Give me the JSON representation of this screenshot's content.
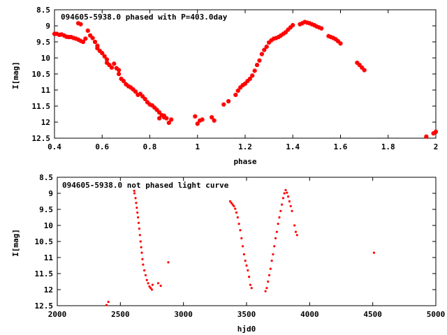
{
  "chart_data": [
    {
      "type": "scatter",
      "title": "094605-5938.0 phased with P=403.0day",
      "xlabel": "phase",
      "ylabel": "I[mag]",
      "xlim": [
        0.4,
        2.0
      ],
      "ylim": [
        8.5,
        12.5
      ],
      "y_inverted": true,
      "xticks": [
        "0.4",
        "0.6",
        "0.8",
        "1",
        "1.2",
        "1.4",
        "1.6",
        "1.8",
        "2"
      ],
      "yticks": [
        "8.5",
        "9",
        "9.5",
        "10",
        "10.5",
        "11",
        "11.5",
        "12",
        "12.5"
      ],
      "marker_color": "#ff0000",
      "series": [
        {
          "points": [
            [
              0.4,
              9.25
            ],
            [
              0.41,
              9.25
            ],
            [
              0.42,
              9.28
            ],
            [
              0.43,
              9.27
            ],
            [
              0.44,
              9.3
            ],
            [
              0.45,
              9.34
            ],
            [
              0.46,
              9.35
            ],
            [
              0.47,
              9.35
            ],
            [
              0.48,
              9.38
            ],
            [
              0.49,
              9.4
            ],
            [
              0.5,
              9.43
            ],
            [
              0.51,
              9.47
            ],
            [
              0.52,
              9.5
            ],
            [
              0.53,
              9.4
            ],
            [
              0.5,
              8.92
            ],
            [
              0.51,
              8.95
            ],
            [
              0.54,
              9.15
            ],
            [
              0.55,
              9.3
            ],
            [
              0.56,
              9.38
            ],
            [
              0.57,
              9.5
            ],
            [
              0.58,
              9.62
            ],
            [
              0.58,
              9.7
            ],
            [
              0.59,
              9.78
            ],
            [
              0.6,
              9.85
            ],
            [
              0.61,
              9.95
            ],
            [
              0.62,
              10.05
            ],
            [
              0.62,
              10.15
            ],
            [
              0.63,
              10.22
            ],
            [
              0.64,
              10.3
            ],
            [
              0.65,
              10.18
            ],
            [
              0.66,
              10.32
            ],
            [
              0.67,
              10.38
            ],
            [
              0.67,
              10.5
            ],
            [
              0.68,
              10.65
            ],
            [
              0.69,
              10.72
            ],
            [
              0.7,
              10.82
            ],
            [
              0.71,
              10.88
            ],
            [
              0.72,
              10.92
            ],
            [
              0.73,
              10.98
            ],
            [
              0.74,
              11.05
            ],
            [
              0.75,
              11.15
            ],
            [
              0.76,
              11.12
            ],
            [
              0.77,
              11.2
            ],
            [
              0.78,
              11.28
            ],
            [
              0.79,
              11.38
            ],
            [
              0.8,
              11.45
            ],
            [
              0.81,
              11.48
            ],
            [
              0.82,
              11.55
            ],
            [
              0.83,
              11.62
            ],
            [
              0.84,
              11.7
            ],
            [
              0.85,
              11.78
            ],
            [
              0.86,
              11.85
            ],
            [
              0.87,
              11.88
            ],
            [
              0.88,
              12.02
            ],
            [
              0.89,
              11.92
            ],
            [
              0.84,
              11.88
            ],
            [
              0.86,
              11.8
            ],
            [
              0.99,
              11.82
            ],
            [
              1.0,
              12.05
            ],
            [
              1.01,
              11.95
            ],
            [
              1.02,
              11.92
            ],
            [
              1.06,
              11.85
            ],
            [
              1.07,
              11.95
            ],
            [
              1.11,
              11.45
            ],
            [
              1.13,
              11.35
            ],
            [
              1.16,
              11.15
            ],
            [
              1.17,
              11.02
            ],
            [
              1.18,
              10.92
            ],
            [
              1.19,
              10.85
            ],
            [
              1.2,
              10.8
            ],
            [
              1.21,
              10.72
            ],
            [
              1.22,
              10.65
            ],
            [
              1.23,
              10.55
            ],
            [
              1.24,
              10.4
            ],
            [
              1.25,
              10.22
            ],
            [
              1.26,
              10.08
            ],
            [
              1.27,
              9.88
            ],
            [
              1.28,
              9.75
            ],
            [
              1.29,
              9.65
            ],
            [
              1.3,
              9.52
            ],
            [
              1.31,
              9.45
            ],
            [
              1.32,
              9.4
            ],
            [
              1.33,
              9.38
            ],
            [
              1.34,
              9.35
            ],
            [
              1.35,
              9.3
            ],
            [
              1.36,
              9.25
            ],
            [
              1.37,
              9.2
            ],
            [
              1.38,
              9.12
            ],
            [
              1.39,
              9.05
            ],
            [
              1.4,
              8.98
            ],
            [
              1.43,
              8.95
            ],
            [
              1.44,
              8.92
            ],
            [
              1.45,
              8.88
            ],
            [
              1.46,
              8.9
            ],
            [
              1.47,
              8.92
            ],
            [
              1.48,
              8.95
            ],
            [
              1.49,
              8.98
            ],
            [
              1.5,
              9.02
            ],
            [
              1.51,
              9.05
            ],
            [
              1.52,
              9.08
            ],
            [
              1.55,
              9.32
            ],
            [
              1.56,
              9.35
            ],
            [
              1.57,
              9.38
            ],
            [
              1.58,
              9.42
            ],
            [
              1.59,
              9.48
            ],
            [
              1.6,
              9.55
            ],
            [
              1.67,
              10.15
            ],
            [
              1.68,
              10.22
            ],
            [
              1.69,
              10.3
            ],
            [
              1.7,
              10.38
            ],
            [
              1.96,
              12.45
            ],
            [
              1.99,
              12.35
            ],
            [
              2.0,
              12.3
            ]
          ]
        }
      ]
    },
    {
      "type": "scatter",
      "title": "094605-5938.0 not phased light curve",
      "xlabel": "hjd0",
      "ylabel": "I[mag]",
      "xlim": [
        2000,
        5000
      ],
      "ylim": [
        8.5,
        12.5
      ],
      "y_inverted": true,
      "xticks": [
        "2000",
        "2500",
        "3000",
        "3500",
        "4000",
        "4500",
        "5000"
      ],
      "yticks": [
        "8.5",
        "9",
        "9.5",
        "10",
        "10.5",
        "11",
        "11.5",
        "12",
        "12.5"
      ],
      "marker_color": "#ff0000",
      "series": [
        {
          "points": [
            [
              2390,
              12.48
            ],
            [
              2405,
              12.38
            ],
            [
              2610,
              8.92
            ],
            [
              2612,
              9.0
            ],
            [
              2620,
              9.15
            ],
            [
              2625,
              9.3
            ],
            [
              2630,
              9.45
            ],
            [
              2635,
              9.6
            ],
            [
              2640,
              9.75
            ],
            [
              2645,
              9.92
            ],
            [
              2650,
              10.1
            ],
            [
              2655,
              10.3
            ],
            [
              2660,
              10.5
            ],
            [
              2665,
              10.68
            ],
            [
              2670,
              10.85
            ],
            [
              2675,
              11.05
            ],
            [
              2680,
              11.22
            ],
            [
              2690,
              11.4
            ],
            [
              2700,
              11.55
            ],
            [
              2710,
              11.7
            ],
            [
              2720,
              11.8
            ],
            [
              2730,
              11.9
            ],
            [
              2740,
              11.95
            ],
            [
              2755,
              11.85
            ],
            [
              2750,
              12.0
            ],
            [
              2800,
              11.8
            ],
            [
              2820,
              11.88
            ],
            [
              2880,
              11.15
            ],
            [
              3370,
              9.25
            ],
            [
              3380,
              9.3
            ],
            [
              3390,
              9.35
            ],
            [
              3400,
              9.4
            ],
            [
              3410,
              9.48
            ],
            [
              3420,
              9.6
            ],
            [
              3430,
              9.75
            ],
            [
              3440,
              9.95
            ],
            [
              3450,
              10.15
            ],
            [
              3460,
              10.4
            ],
            [
              3470,
              10.65
            ],
            [
              3480,
              10.9
            ],
            [
              3490,
              11.1
            ],
            [
              3500,
              11.25
            ],
            [
              3510,
              11.4
            ],
            [
              3520,
              11.6
            ],
            [
              3530,
              11.85
            ],
            [
              3540,
              11.95
            ],
            [
              3650,
              12.05
            ],
            [
              3660,
              11.95
            ],
            [
              3670,
              11.75
            ],
            [
              3680,
              11.55
            ],
            [
              3690,
              11.35
            ],
            [
              3700,
              11.1
            ],
            [
              3710,
              10.9
            ],
            [
              3720,
              10.65
            ],
            [
              3730,
              10.4
            ],
            [
              3740,
              10.2
            ],
            [
              3750,
              9.95
            ],
            [
              3760,
              9.75
            ],
            [
              3770,
              9.55
            ],
            [
              3780,
              9.35
            ],
            [
              3790,
              9.15
            ],
            [
              3800,
              9.0
            ],
            [
              3810,
              8.9
            ],
            [
              3820,
              8.98
            ],
            [
              3830,
              9.1
            ],
            [
              3840,
              9.25
            ],
            [
              3850,
              9.4
            ],
            [
              3860,
              9.55
            ],
            [
              3880,
              10.0
            ],
            [
              3890,
              10.2
            ],
            [
              3900,
              10.3
            ],
            [
              4510,
              10.85
            ]
          ]
        }
      ]
    }
  ]
}
